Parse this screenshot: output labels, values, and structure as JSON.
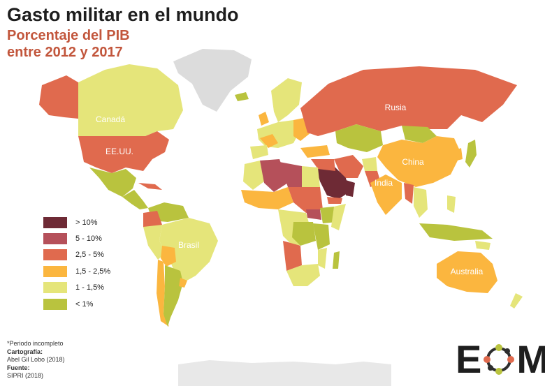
{
  "title": "Gasto militar en el mundo",
  "subtitle_1": "Porcentaje del PIB",
  "subtitle_2": "entre 2012 y 2017",
  "legend": [
    {
      "label": "> 10%",
      "color": "#6e2a35"
    },
    {
      "label": "5 - 10%",
      "color": "#b5505a"
    },
    {
      "label": "2,5 - 5%",
      "color": "#e06a4e"
    },
    {
      "label": "1,5 - 2,5%",
      "color": "#fbb63f"
    },
    {
      "label": "1 - 1,5%",
      "color": "#e5e57a"
    },
    {
      "label": "< 1%",
      "color": "#b9c33e"
    }
  ],
  "no_data_color": "#dcdcdc",
  "countries": [
    {
      "name": "Canadá",
      "class": "1 - 1,5%"
    },
    {
      "name": "EE.UU.",
      "class": "2,5 - 5%"
    },
    {
      "name": "Brasil",
      "class": "1 - 1,5%"
    },
    {
      "name": "Rusia",
      "class": "2,5 - 5%"
    },
    {
      "name": "China",
      "class": "1,5 - 2,5%"
    },
    {
      "name": "India",
      "class": "1,5 - 2,5%"
    },
    {
      "name": "Australia",
      "class": "1,5 - 2,5%"
    }
  ],
  "footer": {
    "note": "*Periodo incompleto",
    "cartography_label": "Cartografía:",
    "cartography_value": "Abel Gil Lobo (2018)",
    "source_label": "Fuente:",
    "source_value": "SIPRI (2018)"
  },
  "logo": {
    "left": "E",
    "right": "M",
    "colors": [
      "#e06a4e",
      "#b9c33e",
      "#2e2e2e"
    ]
  }
}
